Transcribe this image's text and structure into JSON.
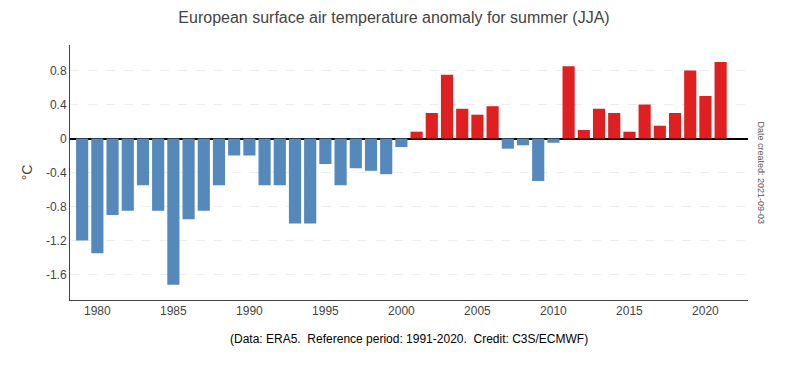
{
  "chart_data": {
    "type": "bar",
    "title": "European surface air temperature anomaly for summer (JJA)",
    "ylabel": "°C",
    "annotations": [
      "(Data: ERA5.  Reference period: 1991-2020.  Credit: C3S/ECMWF)",
      "Date created: 2021-09-03"
    ],
    "x": [
      1979,
      1980,
      1981,
      1982,
      1983,
      1984,
      1985,
      1986,
      1987,
      1988,
      1989,
      1990,
      1991,
      1992,
      1993,
      1994,
      1995,
      1996,
      1997,
      1998,
      1999,
      2000,
      2001,
      2002,
      2003,
      2004,
      2005,
      2006,
      2007,
      2008,
      2009,
      2010,
      2011,
      2012,
      2013,
      2014,
      2015,
      2016,
      2017,
      2018,
      2019,
      2020,
      2021
    ],
    "values": [
      -1.2,
      -1.35,
      -0.9,
      -0.85,
      -0.55,
      -0.85,
      -1.72,
      -0.95,
      -0.85,
      -0.55,
      -0.2,
      -0.2,
      -0.55,
      -0.55,
      -1.0,
      -1.0,
      -0.3,
      -0.55,
      -0.35,
      -0.38,
      -0.42,
      -0.1,
      0.08,
      0.3,
      0.75,
      0.35,
      0.28,
      0.38,
      -0.12,
      -0.08,
      -0.5,
      -0.05,
      0.85,
      0.1,
      0.35,
      0.3,
      0.08,
      0.4,
      0.15,
      0.3,
      0.8,
      0.5,
      0.9
    ],
    "colors": [
      "#5588bb",
      "#5588bb",
      "#5588bb",
      "#5588bb",
      "#5588bb",
      "#5588bb",
      "#5588bb",
      "#5588bb",
      "#5588bb",
      "#5588bb",
      "#5588bb",
      "#5588bb",
      "#5588bb",
      "#5588bb",
      "#5588bb",
      "#5588bb",
      "#5588bb",
      "#5588bb",
      "#5588bb",
      "#5588bb",
      "#5588bb",
      "#5588bb",
      "#e02020",
      "#e02020",
      "#e02020",
      "#e02020",
      "#e02020",
      "#e02020",
      "#5588bb",
      "#5588bb",
      "#5588bb",
      "#5588bb",
      "#e02020",
      "#e02020",
      "#e02020",
      "#e02020",
      "#e02020",
      "#e02020",
      "#e02020",
      "#e02020",
      "#e02020",
      "#e02020",
      "#e02020"
    ],
    "xlim": [
      1978.2,
      2022.8
    ],
    "xticks": [
      1980,
      1985,
      1990,
      1995,
      2000,
      2005,
      2010,
      2015,
      2020
    ],
    "ylim": [
      -1.9,
      1.1
    ],
    "yticks": [
      -1.6,
      -1.2,
      -0.8,
      -0.4,
      0,
      0.4,
      0.8
    ],
    "grid": true
  }
}
